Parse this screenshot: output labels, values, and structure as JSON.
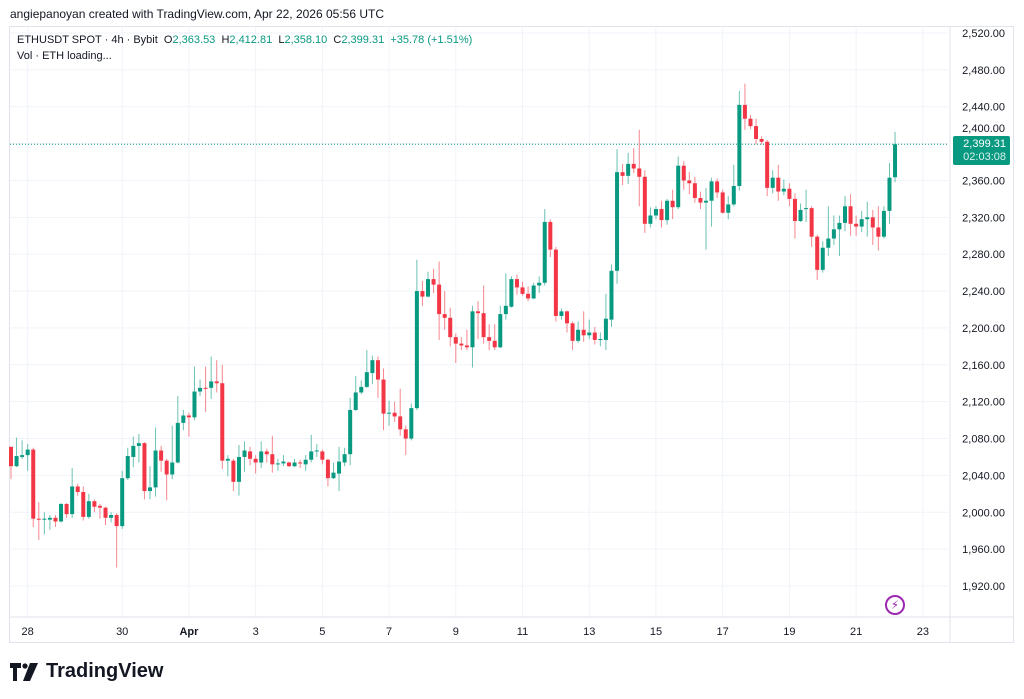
{
  "credit": "angiepanoyan created with TradingView.com, Apr 22, 2026 05:56 UTC",
  "legend": {
    "symbol": "ETHUSDT SPOT · 4h · Bybit",
    "o_label": "O",
    "o": "2,363.53",
    "h_label": "H",
    "h": "2,412.81",
    "l_label": "L",
    "l": "2,358.10",
    "c_label": "C",
    "c": "2,399.31",
    "change": "+35.78 (+1.51%)",
    "vol": "Vol · ETH loading..."
  },
  "price_tag": {
    "price": "2,399.31",
    "countdown": "02:03:08"
  },
  "brand": "TradingView",
  "colors": {
    "up": "#089981",
    "down": "#f23645",
    "grid": "#f0f3fa",
    "alert": "#9c27b0"
  },
  "chart_data": {
    "type": "candlestick",
    "symbol": "ETHUSDT",
    "interval": "4h",
    "ylim": [
      1900,
      2540
    ],
    "y_ticks": [
      1920,
      1960,
      2000,
      2040,
      2080,
      2120,
      2160,
      2200,
      2240,
      2280,
      2320,
      2360,
      2400,
      2440,
      2480,
      2520
    ],
    "y_tick_labels": [
      "1,920.00",
      "1,960.00",
      "2,000.00",
      "2,040.00",
      "2,080.00",
      "2,120.00",
      "2,160.00",
      "2,200.00",
      "2,240.00",
      "2,280.00",
      "2,320.00",
      "2,360.00",
      "2,400.00",
      "2,440.00",
      "2,480.00",
      "2,520.00"
    ],
    "x_ticks": [
      {
        "label": "28",
        "index": 3
      },
      {
        "label": "30",
        "index": 20
      },
      {
        "label": "Apr",
        "index": 32,
        "bold": true
      },
      {
        "label": "3",
        "index": 44
      },
      {
        "label": "5",
        "index": 56
      },
      {
        "label": "7",
        "index": 68
      },
      {
        "label": "9",
        "index": 80
      },
      {
        "label": "11",
        "index": 92
      },
      {
        "label": "13",
        "index": 104
      },
      {
        "label": "15",
        "index": 116
      },
      {
        "label": "17",
        "index": 128
      },
      {
        "label": "19",
        "index": 140
      },
      {
        "label": "21",
        "index": 152
      },
      {
        "label": "23",
        "index": 164
      }
    ],
    "last_price": 2399.31,
    "ohlc_fields": [
      "open",
      "high",
      "low",
      "close"
    ],
    "candles": [
      [
        2071,
        2071,
        2036,
        2050
      ],
      [
        2050,
        2081,
        2049,
        2061
      ],
      [
        2060,
        2078,
        2058,
        2062
      ],
      [
        2062,
        2074,
        2045,
        2068
      ],
      [
        2068,
        2070,
        1984,
        1993
      ],
      [
        1993,
        2011,
        1970,
        1992
      ],
      [
        1992,
        2000,
        1976,
        1993
      ],
      [
        1992,
        1997,
        1981,
        1994
      ],
      [
        1994,
        1997,
        1984,
        1990
      ],
      [
        1990,
        2010,
        1989,
        2009
      ],
      [
        2009,
        2010,
        1994,
        1998
      ],
      [
        1998,
        2048,
        1994,
        2028
      ],
      [
        2028,
        2031,
        2018,
        2022
      ],
      [
        2022,
        2028,
        1991,
        1995
      ],
      [
        1995,
        2020,
        1993,
        2012
      ],
      [
        2012,
        2014,
        2000,
        2006
      ],
      [
        2007,
        2009,
        1993,
        2005
      ],
      [
        2005,
        2006,
        1986,
        1994
      ],
      [
        1994,
        2000,
        1989,
        1997
      ],
      [
        1997,
        1999,
        1940,
        1985
      ],
      [
        1985,
        2045,
        1982,
        2037
      ],
      [
        2037,
        2070,
        2035,
        2061
      ],
      [
        2060,
        2082,
        2049,
        2072
      ],
      [
        2072,
        2085,
        2054,
        2075
      ],
      [
        2075,
        2076,
        2014,
        2023
      ],
      [
        2023,
        2050,
        2014,
        2027
      ],
      [
        2027,
        2092,
        2017,
        2067
      ],
      [
        2067,
        2072,
        2044,
        2056
      ],
      [
        2056,
        2058,
        2013,
        2041
      ],
      [
        2041,
        2094,
        2036,
        2054
      ],
      [
        2054,
        2126,
        2053,
        2097
      ],
      [
        2097,
        2111,
        2089,
        2105
      ],
      [
        2105,
        2108,
        2082,
        2103
      ],
      [
        2103,
        2158,
        2100,
        2131
      ],
      [
        2131,
        2144,
        2126,
        2135
      ],
      [
        2135,
        2158,
        2109,
        2134
      ],
      [
        2135,
        2169,
        2123,
        2142
      ],
      [
        2142,
        2165,
        2130,
        2140
      ],
      [
        2140,
        2160,
        2047,
        2056
      ],
      [
        2056,
        2062,
        2039,
        2058
      ],
      [
        2056,
        2058,
        2023,
        2033
      ],
      [
        2033,
        2073,
        2018,
        2060
      ],
      [
        2060,
        2077,
        2044,
        2067
      ],
      [
        2066,
        2071,
        2051,
        2058
      ],
      [
        2058,
        2062,
        2042,
        2054
      ],
      [
        2054,
        2077,
        2048,
        2066
      ],
      [
        2066,
        2069,
        2054,
        2063
      ],
      [
        2063,
        2083,
        2043,
        2052
      ],
      [
        2052,
        2058,
        2045,
        2053
      ],
      [
        2053,
        2062,
        2050,
        2055
      ],
      [
        2054,
        2055,
        2049,
        2050
      ],
      [
        2050,
        2058,
        2049,
        2054
      ],
      [
        2054,
        2057,
        2048,
        2053
      ],
      [
        2052,
        2062,
        2045,
        2057
      ],
      [
        2057,
        2084,
        2054,
        2066
      ],
      [
        2066,
        2074,
        2060,
        2067
      ],
      [
        2066,
        2068,
        2052,
        2057
      ],
      [
        2057,
        2058,
        2028,
        2037
      ],
      [
        2037,
        2054,
        2036,
        2043
      ],
      [
        2042,
        2071,
        2023,
        2055
      ],
      [
        2054,
        2070,
        2050,
        2063
      ],
      [
        2063,
        2124,
        2051,
        2111
      ],
      [
        2111,
        2148,
        2110,
        2130
      ],
      [
        2130,
        2143,
        2128,
        2136
      ],
      [
        2136,
        2176,
        2135,
        2152
      ],
      [
        2151,
        2170,
        2139,
        2165
      ],
      [
        2165,
        2169,
        2124,
        2144
      ],
      [
        2144,
        2156,
        2089,
        2107
      ],
      [
        2107,
        2121,
        2094,
        2108
      ],
      [
        2108,
        2120,
        2098,
        2104
      ],
      [
        2104,
        2134,
        2083,
        2090
      ],
      [
        2090,
        2094,
        2062,
        2080
      ],
      [
        2080,
        2118,
        2078,
        2113
      ],
      [
        2113,
        2274,
        2111,
        2240
      ],
      [
        2240,
        2251,
        2224,
        2234
      ],
      [
        2234,
        2261,
        2233,
        2253
      ],
      [
        2253,
        2264,
        2238,
        2247
      ],
      [
        2247,
        2272,
        2187,
        2215
      ],
      [
        2215,
        2240,
        2198,
        2211
      ],
      [
        2211,
        2222,
        2180,
        2190
      ],
      [
        2190,
        2194,
        2162,
        2183
      ],
      [
        2183,
        2190,
        2176,
        2181
      ],
      [
        2181,
        2198,
        2176,
        2179
      ],
      [
        2179,
        2224,
        2157,
        2218
      ],
      [
        2218,
        2229,
        2188,
        2216
      ],
      [
        2216,
        2246,
        2183,
        2190
      ],
      [
        2190,
        2204,
        2176,
        2186
      ],
      [
        2186,
        2204,
        2176,
        2179
      ],
      [
        2179,
        2224,
        2178,
        2215
      ],
      [
        2215,
        2259,
        2209,
        2224
      ],
      [
        2223,
        2256,
        2222,
        2253
      ],
      [
        2253,
        2258,
        2236,
        2244
      ],
      [
        2244,
        2250,
        2235,
        2237
      ],
      [
        2237,
        2245,
        2229,
        2232
      ],
      [
        2232,
        2249,
        2231,
        2246
      ],
      [
        2246,
        2256,
        2238,
        2249
      ],
      [
        2249,
        2329,
        2246,
        2315
      ],
      [
        2315,
        2318,
        2277,
        2285
      ],
      [
        2285,
        2288,
        2207,
        2213
      ],
      [
        2213,
        2221,
        2209,
        2218
      ],
      [
        2218,
        2219,
        2195,
        2205
      ],
      [
        2205,
        2207,
        2176,
        2186
      ],
      [
        2186,
        2207,
        2184,
        2198
      ],
      [
        2198,
        2218,
        2185,
        2192
      ],
      [
        2192,
        2209,
        2188,
        2195
      ],
      [
        2195,
        2201,
        2182,
        2187
      ],
      [
        2187,
        2195,
        2180,
        2188
      ],
      [
        2187,
        2237,
        2176,
        2210
      ],
      [
        2209,
        2269,
        2201,
        2262
      ],
      [
        2262,
        2394,
        2248,
        2369
      ],
      [
        2369,
        2378,
        2355,
        2365
      ],
      [
        2365,
        2390,
        2356,
        2378
      ],
      [
        2378,
        2395,
        2368,
        2373
      ],
      [
        2373,
        2415,
        2332,
        2364
      ],
      [
        2364,
        2371,
        2303,
        2313
      ],
      [
        2313,
        2331,
        2309,
        2322
      ],
      [
        2322,
        2332,
        2318,
        2329
      ],
      [
        2329,
        2338,
        2309,
        2317
      ],
      [
        2317,
        2340,
        2312,
        2338
      ],
      [
        2338,
        2350,
        2318,
        2331
      ],
      [
        2331,
        2386,
        2329,
        2376
      ],
      [
        2376,
        2381,
        2350,
        2360
      ],
      [
        2360,
        2369,
        2345,
        2357
      ],
      [
        2357,
        2364,
        2336,
        2341
      ],
      [
        2341,
        2348,
        2329,
        2336
      ],
      [
        2336,
        2352,
        2285,
        2338
      ],
      [
        2338,
        2363,
        2310,
        2359
      ],
      [
        2359,
        2362,
        2341,
        2347
      ],
      [
        2347,
        2350,
        2324,
        2325
      ],
      [
        2325,
        2343,
        2318,
        2334
      ],
      [
        2334,
        2377,
        2332,
        2354
      ],
      [
        2354,
        2457,
        2349,
        2442
      ],
      [
        2442,
        2465,
        2415,
        2427
      ],
      [
        2427,
        2431,
        2416,
        2419
      ],
      [
        2419,
        2427,
        2399,
        2405
      ],
      [
        2405,
        2408,
        2399,
        2402
      ],
      [
        2402,
        2404,
        2343,
        2352
      ],
      [
        2352,
        2371,
        2346,
        2363
      ],
      [
        2363,
        2377,
        2338,
        2348
      ],
      [
        2348,
        2361,
        2344,
        2351
      ],
      [
        2351,
        2357,
        2332,
        2340
      ],
      [
        2340,
        2346,
        2297,
        2316
      ],
      [
        2316,
        2335,
        2315,
        2328
      ],
      [
        2329,
        2350,
        2315,
        2330
      ],
      [
        2330,
        2332,
        2288,
        2299
      ],
      [
        2299,
        2301,
        2252,
        2263
      ],
      [
        2263,
        2294,
        2260,
        2287
      ],
      [
        2287,
        2332,
        2278,
        2297
      ],
      [
        2297,
        2322,
        2290,
        2307
      ],
      [
        2307,
        2322,
        2278,
        2314
      ],
      [
        2314,
        2343,
        2305,
        2332
      ],
      [
        2332,
        2345,
        2300,
        2313
      ],
      [
        2313,
        2322,
        2300,
        2310
      ],
      [
        2310,
        2327,
        2304,
        2318
      ],
      [
        2318,
        2337,
        2299,
        2320
      ],
      [
        2320,
        2328,
        2290,
        2309
      ],
      [
        2309,
        2332,
        2284,
        2299
      ],
      [
        2299,
        2332,
        2297,
        2327
      ],
      [
        2327,
        2379,
        2313,
        2363
      ],
      [
        2363.53,
        2412.81,
        2358.1,
        2399.31
      ]
    ]
  }
}
